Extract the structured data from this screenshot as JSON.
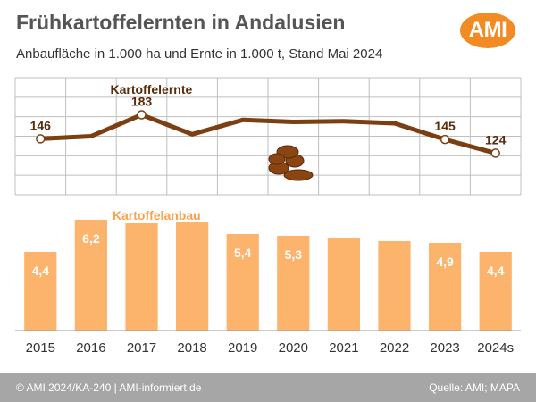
{
  "header": {
    "title": "Frühkartoffelernten in Andalusien",
    "subtitle": "Anbaufläche in 1.000 ha und Ernte in 1.000 t, Stand Mai 2024",
    "logo_text": "AMI"
  },
  "footer": {
    "left": "© AMI 2024/KA-240 | AMI-informiert.de",
    "right": "Quelle: AMI; MAPA"
  },
  "colors": {
    "bar": "#fcb36b",
    "bar_label_text": "#ffffff",
    "line": "#7b3f12",
    "line_label": "#5a2a0a",
    "area_label": "#f7a14b",
    "grid": "#bfbfbf",
    "footer": "#a6a6a6",
    "logo": "#f28b21",
    "potato": "#8b4513"
  },
  "chart_data": [
    {
      "type": "line",
      "name": "Kartoffelernte",
      "series_label": "Kartoffelernte",
      "categories": [
        "2015",
        "2016",
        "2017",
        "2018",
        "2019",
        "2020",
        "2021",
        "2022",
        "2023",
        "2024s"
      ],
      "values": [
        146,
        150,
        183,
        153,
        175,
        172,
        173,
        170,
        145,
        124
      ],
      "data_labels": {
        "2015": "146",
        "2017": "183",
        "2023": "145",
        "2024s": "124"
      },
      "ylim": [
        60,
        240
      ],
      "grid": true
    },
    {
      "type": "bar",
      "name": "Kartoffelanbau",
      "series_label": "Kartoffelanbau",
      "categories": [
        "2015",
        "2016",
        "2017",
        "2018",
        "2019",
        "2020",
        "2021",
        "2022",
        "2023",
        "2024s"
      ],
      "values": [
        4.4,
        6.2,
        6.0,
        6.1,
        5.4,
        5.3,
        5.2,
        5.0,
        4.9,
        4.4
      ],
      "data_labels": {
        "2015": "4,4",
        "2016": "6,2",
        "2019": "5,4",
        "2020": "5,3",
        "2023": "4,9",
        "2024s": "4,4"
      },
      "ylim": [
        0,
        6.5
      ],
      "grid": false
    }
  ]
}
